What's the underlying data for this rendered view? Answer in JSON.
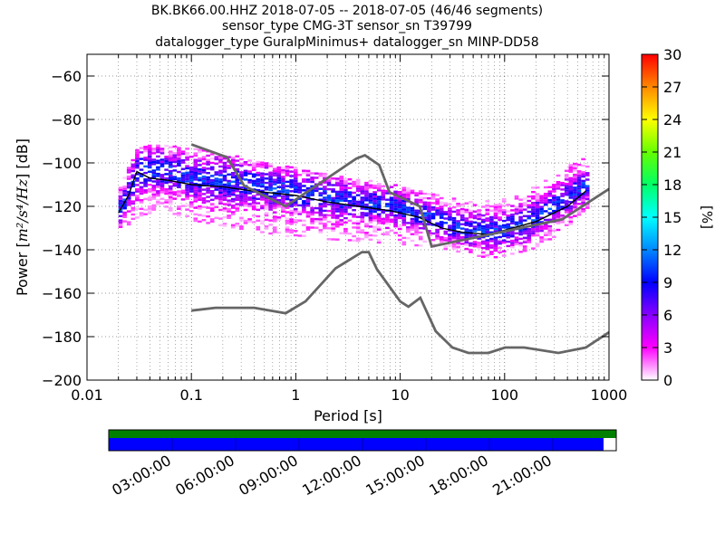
{
  "title": {
    "line1": "BK.BK66.00.HHZ   2018-07-05 -- 2018-07-05  (46/46 segments)",
    "line2": "sensor_type CMG-3T sensor_sn T39799",
    "line3": "datalogger_type GuralpMinimus+ datalogger_sn MINP-DD58"
  },
  "chart_data": {
    "type": "heatmap",
    "xlabel": "Period [s]",
    "ylabel_prefix": "Power [",
    "ylabel_units": "m²/s⁴/Hz",
    "ylabel_suffix": "] [dB]",
    "x_scale": "log",
    "xlim": [
      0.01,
      1000
    ],
    "ylim": [
      -200,
      -50
    ],
    "x_ticks": [
      0.01,
      0.1,
      1,
      10,
      100,
      1000
    ],
    "x_tick_labels": [
      "0.01",
      "0.1",
      "1",
      "10",
      "100",
      "1000"
    ],
    "y_ticks": [
      -200,
      -180,
      -160,
      -140,
      -120,
      -100,
      -80,
      -60
    ],
    "y_tick_labels": [
      "−200",
      "−180",
      "−160",
      "−140",
      "−120",
      "−100",
      "−80",
      "−60"
    ],
    "grid": "dotted, log minor verticals",
    "colorbar": {
      "label": "[%]",
      "range": [
        0,
        30
      ],
      "ticks": [
        0,
        3,
        6,
        9,
        12,
        15,
        18,
        21,
        24,
        27,
        30
      ],
      "colors": [
        "#ffffff",
        "#ff00ff",
        "#8800ff",
        "#0000ff",
        "#0088ff",
        "#00ffff",
        "#00ff66",
        "#66ff00",
        "#ffff00",
        "#ff8800",
        "#ff0000"
      ]
    },
    "nhnm": {
      "name": "New High Noise Model",
      "x": [
        0.1,
        0.22,
        0.32,
        0.8,
        3.8,
        4.6,
        6.3,
        7.9,
        15.4,
        20,
        354.8,
        1000
      ],
      "y": [
        -91.5,
        -97.4,
        -110.5,
        -120,
        -98,
        -96.5,
        -101,
        -113.5,
        -120,
        -138.5,
        -126,
        -112
      ]
    },
    "nlnm": {
      "name": "New Low Noise Model",
      "x": [
        0.1,
        0.17,
        0.4,
        0.8,
        1.24,
        2.4,
        4.3,
        5,
        6,
        10,
        12,
        15.6,
        21.9,
        31.6,
        45,
        70,
        101,
        154,
        328,
        600,
        1000
      ],
      "y": [
        -168,
        -166.7,
        -166.7,
        -169.2,
        -163.7,
        -148.6,
        -141.1,
        -141.1,
        -149,
        -163.8,
        -166.2,
        -162.1,
        -177.5,
        -185,
        -187.5,
        -187.5,
        -185,
        -185,
        -187.5,
        -185,
        -178
      ]
    },
    "mode_curve": {
      "x": [
        0.02,
        0.025,
        0.03,
        0.04,
        0.06,
        0.1,
        0.2,
        0.4,
        1,
        2,
        4,
        8,
        15,
        25,
        40,
        70,
        100,
        200,
        400,
        600
      ],
      "y": [
        -123,
        -115,
        -104,
        -107,
        -108,
        -110,
        -111,
        -113,
        -115,
        -118,
        -120,
        -122,
        -125,
        -130,
        -132,
        -133,
        -131,
        -127,
        -120,
        -113
      ]
    },
    "spread": {
      "x": [
        0.02,
        0.03,
        0.05,
        0.1,
        0.3,
        1,
        3,
        10,
        20,
        40,
        80,
        150,
        300,
        600
      ],
      "upper": [
        -110,
        -93,
        -92,
        -94,
        -98,
        -103,
        -107,
        -111,
        -115,
        -118,
        -118,
        -114,
        -106,
        -96
      ],
      "lower": [
        -132,
        -125,
        -122,
        -127,
        -131,
        -135,
        -136,
        -138,
        -139,
        -142,
        -145,
        -142,
        -134,
        -122
      ],
      "center": [
        -122,
        -104,
        -104,
        -107,
        -110,
        -114,
        -118,
        -121,
        -126,
        -131,
        -132,
        -128,
        -120,
        -110
      ]
    }
  },
  "timeline": {
    "tick_labels": [
      "03:00:00",
      "06:00:00",
      "09:00:00",
      "12:00:00",
      "15:00:00",
      "18:00:00",
      "21:00:00"
    ],
    "coverage_fraction": 0.975,
    "data_color": "#0000ff",
    "gap_color": "#ffffff",
    "status_color": "#008000"
  }
}
